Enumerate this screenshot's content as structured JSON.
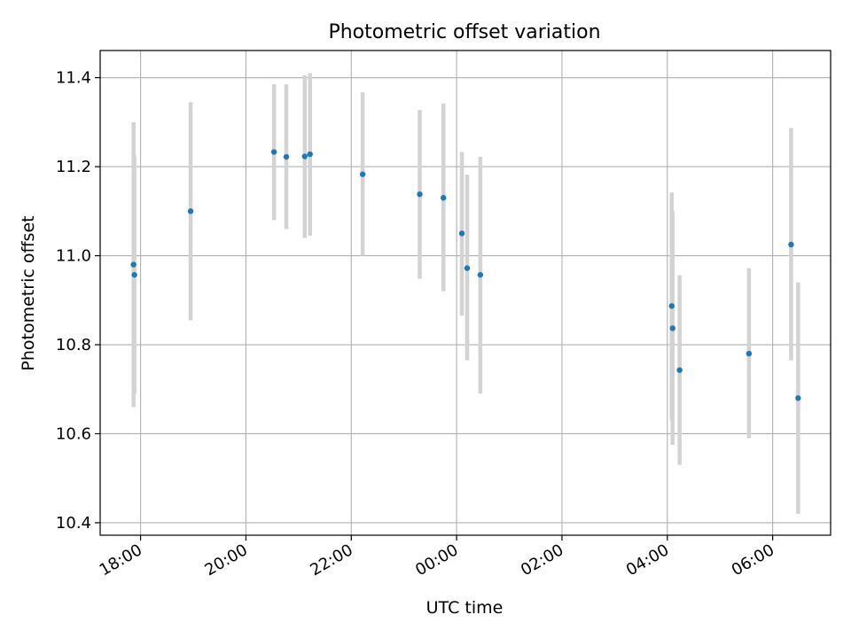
{
  "chart_data": {
    "type": "scatter",
    "title": "Photometric offset variation",
    "xlabel": "UTC time",
    "ylabel": "Photometric offset",
    "x_ticks": [
      "18:00",
      "20:00",
      "22:00",
      "00:00",
      "02:00",
      "04:00",
      "06:00"
    ],
    "x_tick_hours": [
      18,
      20,
      22,
      24,
      26,
      28,
      30
    ],
    "xlim_hours": [
      17.233,
      31.1
    ],
    "y_ticks": [
      "10.4",
      "10.6",
      "10.8",
      "11.0",
      "11.2",
      "11.4"
    ],
    "y_tick_values": [
      10.4,
      10.6,
      10.8,
      11.0,
      11.2,
      11.4
    ],
    "ylim": [
      10.372,
      11.461
    ],
    "grid": true,
    "point_color": "#1f77b4",
    "errorbar_color": "#d3d3d3",
    "points": [
      {
        "time": "17:52",
        "value": 10.98,
        "err_low": 10.66,
        "err_high": 11.3
      },
      {
        "time": "17:53",
        "value": 10.957,
        "err_low": 10.69,
        "err_high": 11.225
      },
      {
        "time": "18:57",
        "value": 11.1,
        "err_low": 10.855,
        "err_high": 11.345
      },
      {
        "time": "20:32",
        "value": 11.233,
        "err_low": 11.08,
        "err_high": 11.385
      },
      {
        "time": "20:46",
        "value": 11.222,
        "err_low": 11.06,
        "err_high": 11.385
      },
      {
        "time": "21:07",
        "value": 11.223,
        "err_low": 11.04,
        "err_high": 11.405
      },
      {
        "time": "21:13",
        "value": 11.228,
        "err_low": 11.045,
        "err_high": 11.41
      },
      {
        "time": "22:13",
        "value": 11.183,
        "err_low": 11.0,
        "err_high": 11.367
      },
      {
        "time": "23:18",
        "value": 11.138,
        "err_low": 10.948,
        "err_high": 11.327
      },
      {
        "time": "23:45",
        "value": 11.13,
        "err_low": 10.92,
        "err_high": 11.342
      },
      {
        "time": "00:06",
        "value": 11.05,
        "err_low": 10.865,
        "err_high": 11.233
      },
      {
        "time": "00:12",
        "value": 10.972,
        "err_low": 10.765,
        "err_high": 11.182
      },
      {
        "time": "00:27",
        "value": 10.957,
        "err_low": 10.69,
        "err_high": 11.222
      },
      {
        "time": "04:05",
        "value": 10.887,
        "err_low": 10.63,
        "err_high": 11.142
      },
      {
        "time": "04:06",
        "value": 10.837,
        "err_low": 10.575,
        "err_high": 11.1
      },
      {
        "time": "04:14",
        "value": 10.743,
        "err_low": 10.53,
        "err_high": 10.956
      },
      {
        "time": "05:33",
        "value": 10.78,
        "err_low": 10.59,
        "err_high": 10.972
      },
      {
        "time": "06:21",
        "value": 11.025,
        "err_low": 10.765,
        "err_high": 11.287
      },
      {
        "time": "06:29",
        "value": 10.68,
        "err_low": 10.42,
        "err_high": 10.94
      }
    ]
  }
}
